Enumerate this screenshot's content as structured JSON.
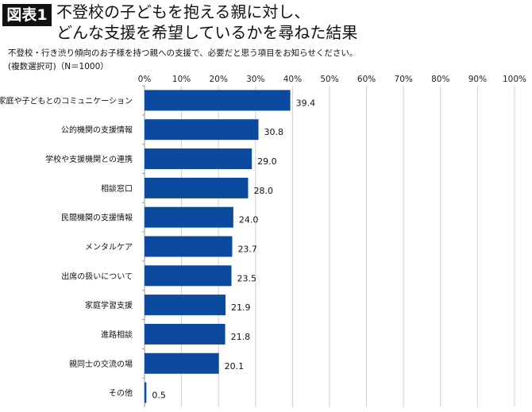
{
  "figure_label": "図表1",
  "title_lines": [
    "不登校の子どもを抱える親に対し、",
    "どんな支援を希望しているかを尋ねた結果"
  ],
  "subtitle_lines": [
    "不登校・行き渋り傾向のお子様を持つ親への支援で、必要だと思う項目をお知らせください。",
    "(複数選択可)（N＝1000）"
  ],
  "chart_data": {
    "type": "bar",
    "orientation": "horizontal",
    "categories": [
      "家庭や子どもとのコミュニケーション",
      "公的機関の支援情報",
      "学校や支援機関との連携",
      "相談窓口",
      "民間機関の支援情報",
      "メンタルケア",
      "出席の扱いについて",
      "家庭学習支援",
      "進路相談",
      "親同士の交流の場",
      "その他"
    ],
    "values": [
      39.4,
      30.8,
      29.0,
      28.0,
      24.0,
      23.7,
      23.5,
      21.9,
      21.8,
      20.1,
      0.5
    ],
    "value_labels": [
      "39.4",
      "30.8",
      "29.0",
      "28.0",
      "24.0",
      "23.7",
      "23.5",
      "21.9",
      "21.8",
      "20.1",
      "0.5"
    ],
    "xlim": [
      0,
      100
    ],
    "xticks": [
      "0%",
      "10%",
      "20%",
      "30%",
      "40%",
      "50%",
      "60%",
      "70%",
      "80%",
      "90%",
      "100%"
    ],
    "grid": true,
    "bar_color": "#0b4a9e"
  }
}
